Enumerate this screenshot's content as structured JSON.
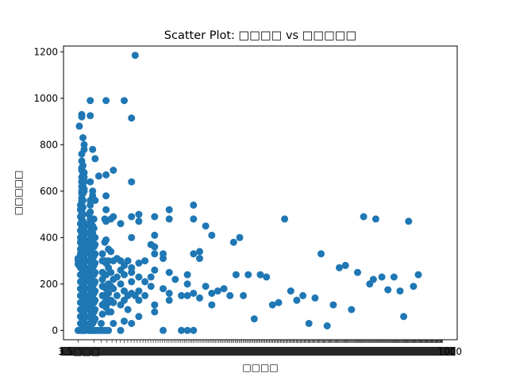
{
  "chart_data": {
    "type": "scatter",
    "title": "Scatter Plot: □□□□ vs □□□□□",
    "xlabel": "□□□□",
    "ylabel": "□□□□□",
    "ylim": [
      -40,
      1225
    ],
    "y_ticks": [
      0,
      200,
      400,
      600,
      800,
      1000,
      1200
    ],
    "x_axis_note": "categorical x axis; ~300 overlapping tick labels render as an illegible smear (leftmost reads \"3.5□□□\", rightmost reads \"1000\")",
    "x_tick_left_text": "3.5□□□",
    "x_tick_right_text": "1000",
    "grid": false,
    "color": "#1f77b4",
    "points_note": "approximate reading; x values are category index positions 0-300",
    "points": [
      [
        0,
        300
      ],
      [
        0,
        310
      ],
      [
        0,
        285
      ],
      [
        0,
        0
      ],
      [
        1,
        880
      ],
      [
        1,
        0
      ],
      [
        1,
        280
      ],
      [
        2,
        540
      ],
      [
        2,
        520
      ],
      [
        2,
        490
      ],
      [
        2,
        460
      ],
      [
        2,
        430
      ],
      [
        2,
        400
      ],
      [
        2,
        380
      ],
      [
        2,
        350
      ],
      [
        2,
        330
      ],
      [
        2,
        300
      ],
      [
        2,
        270
      ],
      [
        2,
        240
      ],
      [
        2,
        210
      ],
      [
        2,
        180
      ],
      [
        2,
        150
      ],
      [
        2,
        120
      ],
      [
        2,
        90
      ],
      [
        2,
        60
      ],
      [
        2,
        30
      ],
      [
        2,
        0
      ],
      [
        3,
        930
      ],
      [
        3,
        920
      ],
      [
        3,
        760
      ],
      [
        3,
        730
      ],
      [
        3,
        700
      ],
      [
        3,
        690
      ],
      [
        3,
        660
      ],
      [
        3,
        640
      ],
      [
        3,
        620
      ],
      [
        3,
        600
      ],
      [
        3,
        590
      ],
      [
        3,
        570
      ],
      [
        3,
        560
      ],
      [
        3,
        540
      ],
      [
        3,
        510
      ],
      [
        3,
        480
      ],
      [
        3,
        450
      ],
      [
        3,
        420
      ],
      [
        3,
        390
      ],
      [
        3,
        360
      ],
      [
        3,
        330
      ],
      [
        3,
        300
      ],
      [
        3,
        270
      ],
      [
        3,
        240
      ],
      [
        3,
        210
      ],
      [
        3,
        180
      ],
      [
        3,
        150
      ],
      [
        3,
        120
      ],
      [
        3,
        90
      ],
      [
        3,
        60
      ],
      [
        3,
        30
      ],
      [
        3,
        0
      ],
      [
        4,
        830
      ],
      [
        4,
        710
      ],
      [
        4,
        680
      ],
      [
        4,
        650
      ],
      [
        4,
        620
      ],
      [
        4,
        590
      ],
      [
        4,
        560
      ],
      [
        4,
        530
      ],
      [
        4,
        500
      ],
      [
        4,
        470
      ],
      [
        4,
        440
      ],
      [
        4,
        410
      ],
      [
        4,
        380
      ],
      [
        4,
        350
      ],
      [
        4,
        320
      ],
      [
        4,
        290
      ],
      [
        4,
        260
      ],
      [
        4,
        230
      ],
      [
        4,
        200
      ],
      [
        4,
        170
      ],
      [
        4,
        140
      ],
      [
        4,
        110
      ],
      [
        4,
        80
      ],
      [
        4,
        50
      ],
      [
        4,
        20
      ],
      [
        4,
        0
      ],
      [
        5,
        800
      ],
      [
        5,
        780
      ],
      [
        5,
        680
      ],
      [
        5,
        660
      ],
      [
        5,
        640
      ],
      [
        5,
        610
      ],
      [
        5,
        600
      ],
      [
        5,
        460
      ],
      [
        5,
        430
      ],
      [
        5,
        400
      ],
      [
        5,
        370
      ],
      [
        5,
        340
      ],
      [
        5,
        310
      ],
      [
        5,
        280
      ],
      [
        5,
        250
      ],
      [
        5,
        220
      ],
      [
        5,
        190
      ],
      [
        5,
        160
      ],
      [
        5,
        130
      ],
      [
        5,
        100
      ],
      [
        5,
        70
      ],
      [
        5,
        40
      ],
      [
        5,
        0
      ],
      [
        6,
        450
      ],
      [
        6,
        420
      ],
      [
        6,
        390
      ],
      [
        6,
        360
      ],
      [
        6,
        330
      ],
      [
        6,
        300
      ],
      [
        6,
        270
      ],
      [
        6,
        240
      ],
      [
        6,
        210
      ],
      [
        6,
        180
      ],
      [
        6,
        150
      ],
      [
        6,
        120
      ],
      [
        6,
        90
      ],
      [
        6,
        60
      ],
      [
        6,
        30
      ],
      [
        6,
        0
      ],
      [
        9,
        500
      ],
      [
        9,
        460
      ],
      [
        9,
        420
      ],
      [
        9,
        380
      ],
      [
        9,
        340
      ],
      [
        9,
        300
      ],
      [
        9,
        260
      ],
      [
        9,
        220
      ],
      [
        9,
        180
      ],
      [
        9,
        140
      ],
      [
        9,
        100
      ],
      [
        9,
        60
      ],
      [
        9,
        20
      ],
      [
        9,
        0
      ],
      [
        10,
        990
      ],
      [
        10,
        925
      ],
      [
        10,
        640
      ],
      [
        10,
        560
      ],
      [
        10,
        540
      ],
      [
        10,
        510
      ],
      [
        10,
        480
      ],
      [
        10,
        450
      ],
      [
        10,
        420
      ],
      [
        10,
        390
      ],
      [
        10,
        360
      ],
      [
        10,
        330
      ],
      [
        10,
        300
      ],
      [
        10,
        270
      ],
      [
        10,
        240
      ],
      [
        10,
        210
      ],
      [
        10,
        180
      ],
      [
        10,
        150
      ],
      [
        10,
        120
      ],
      [
        10,
        90
      ],
      [
        10,
        60
      ],
      [
        10,
        30
      ],
      [
        10,
        0
      ],
      [
        11,
        470
      ],
      [
        11,
        440
      ],
      [
        11,
        410
      ],
      [
        11,
        380
      ],
      [
        11,
        350
      ],
      [
        11,
        320
      ],
      [
        11,
        290
      ],
      [
        11,
        260
      ],
      [
        11,
        230
      ],
      [
        11,
        200
      ],
      [
        11,
        170
      ],
      [
        11,
        140
      ],
      [
        11,
        110
      ],
      [
        11,
        80
      ],
      [
        11,
        50
      ],
      [
        11,
        0
      ],
      [
        12,
        780
      ],
      [
        12,
        600
      ],
      [
        12,
        580
      ],
      [
        12,
        480
      ],
      [
        12,
        450
      ],
      [
        12,
        420
      ],
      [
        12,
        390
      ],
      [
        12,
        360
      ],
      [
        12,
        330
      ],
      [
        12,
        300
      ],
      [
        12,
        270
      ],
      [
        12,
        240
      ],
      [
        12,
        210
      ],
      [
        12,
        180
      ],
      [
        12,
        150
      ],
      [
        12,
        120
      ],
      [
        12,
        90
      ],
      [
        12,
        60
      ],
      [
        12,
        30
      ],
      [
        12,
        0
      ],
      [
        13,
        480
      ],
      [
        13,
        440
      ],
      [
        13,
        400
      ],
      [
        13,
        360
      ],
      [
        13,
        320
      ],
      [
        13,
        280
      ],
      [
        13,
        240
      ],
      [
        13,
        200
      ],
      [
        13,
        160
      ],
      [
        13,
        120
      ],
      [
        13,
        80
      ],
      [
        13,
        40
      ],
      [
        13,
        0
      ],
      [
        14,
        740
      ],
      [
        14,
        560
      ],
      [
        14,
        400
      ],
      [
        14,
        370
      ],
      [
        14,
        330
      ],
      [
        14,
        290
      ],
      [
        14,
        250
      ],
      [
        14,
        210
      ],
      [
        14,
        170
      ],
      [
        14,
        130
      ],
      [
        14,
        90
      ],
      [
        14,
        50
      ],
      [
        14,
        0
      ],
      [
        16,
        0
      ],
      [
        17,
        665
      ],
      [
        18,
        0
      ],
      [
        19,
        30
      ],
      [
        20,
        330
      ],
      [
        20,
        300
      ],
      [
        20,
        250
      ],
      [
        20,
        220
      ],
      [
        20,
        190
      ],
      [
        20,
        150
      ],
      [
        20,
        110
      ],
      [
        20,
        70
      ],
      [
        20,
        0
      ],
      [
        22,
        480
      ],
      [
        22,
        380
      ],
      [
        22,
        300
      ],
      [
        22,
        240
      ],
      [
        22,
        190
      ],
      [
        22,
        150
      ],
      [
        22,
        120
      ],
      [
        22,
        0
      ],
      [
        23,
        990
      ],
      [
        23,
        670
      ],
      [
        23,
        580
      ],
      [
        23,
        520
      ],
      [
        23,
        470
      ],
      [
        23,
        390
      ],
      [
        23,
        290
      ],
      [
        23,
        240
      ],
      [
        23,
        180
      ],
      [
        23,
        140
      ],
      [
        23,
        100
      ],
      [
        23,
        0
      ],
      [
        25,
        350
      ],
      [
        25,
        300
      ],
      [
        25,
        270
      ],
      [
        25,
        200
      ],
      [
        25,
        160
      ],
      [
        25,
        120
      ],
      [
        25,
        80
      ],
      [
        25,
        0
      ],
      [
        27,
        480
      ],
      [
        27,
        340
      ],
      [
        27,
        250
      ],
      [
        27,
        190
      ],
      [
        27,
        130
      ],
      [
        27,
        80
      ],
      [
        29,
        690
      ],
      [
        29,
        490
      ],
      [
        29,
        300
      ],
      [
        29,
        220
      ],
      [
        29,
        180
      ],
      [
        29,
        120
      ],
      [
        29,
        30
      ],
      [
        32,
        310
      ],
      [
        32,
        230
      ],
      [
        32,
        150
      ],
      [
        35,
        460
      ],
      [
        35,
        300
      ],
      [
        35,
        260
      ],
      [
        35,
        200
      ],
      [
        35,
        110
      ],
      [
        35,
        0
      ],
      [
        38,
        990
      ],
      [
        38,
        280
      ],
      [
        38,
        240
      ],
      [
        38,
        170
      ],
      [
        38,
        130
      ],
      [
        38,
        40
      ],
      [
        41,
        300
      ],
      [
        41,
        150
      ],
      [
        41,
        90
      ],
      [
        44,
        915
      ],
      [
        44,
        640
      ],
      [
        44,
        490
      ],
      [
        44,
        400
      ],
      [
        44,
        270
      ],
      [
        44,
        250
      ],
      [
        44,
        210
      ],
      [
        44,
        160
      ],
      [
        44,
        30
      ],
      [
        47,
        1185
      ],
      [
        47,
        150
      ],
      [
        50,
        500
      ],
      [
        50,
        470
      ],
      [
        50,
        290
      ],
      [
        50,
        230
      ],
      [
        50,
        170
      ],
      [
        50,
        130
      ],
      [
        50,
        60
      ],
      [
        55,
        300
      ],
      [
        55,
        210
      ],
      [
        55,
        150
      ],
      [
        60,
        370
      ],
      [
        60,
        230
      ],
      [
        60,
        190
      ],
      [
        63,
        490
      ],
      [
        63,
        410
      ],
      [
        63,
        360
      ],
      [
        63,
        330
      ],
      [
        63,
        260
      ],
      [
        63,
        110
      ],
      [
        63,
        80
      ],
      [
        70,
        330
      ],
      [
        70,
        310
      ],
      [
        70,
        180
      ],
      [
        70,
        0
      ],
      [
        75,
        520
      ],
      [
        75,
        480
      ],
      [
        75,
        250
      ],
      [
        75,
        160
      ],
      [
        75,
        130
      ],
      [
        80,
        220
      ],
      [
        85,
        150
      ],
      [
        85,
        0
      ],
      [
        90,
        240
      ],
      [
        90,
        200
      ],
      [
        90,
        150
      ],
      [
        90,
        0
      ],
      [
        95,
        540
      ],
      [
        95,
        480
      ],
      [
        95,
        330
      ],
      [
        95,
        160
      ],
      [
        95,
        0
      ],
      [
        100,
        340
      ],
      [
        100,
        310
      ],
      [
        100,
        140
      ],
      [
        105,
        450
      ],
      [
        105,
        190
      ],
      [
        110,
        410
      ],
      [
        110,
        160
      ],
      [
        110,
        110
      ],
      [
        115,
        170
      ],
      [
        120,
        180
      ],
      [
        125,
        150
      ],
      [
        128,
        380
      ],
      [
        130,
        240
      ],
      [
        133,
        400
      ],
      [
        136,
        150
      ],
      [
        140,
        240
      ],
      [
        145,
        50
      ],
      [
        150,
        240
      ],
      [
        155,
        230
      ],
      [
        160,
        110
      ],
      [
        165,
        120
      ],
      [
        170,
        480
      ],
      [
        175,
        170
      ],
      [
        180,
        130
      ],
      [
        185,
        150
      ],
      [
        190,
        30
      ],
      [
        195,
        140
      ],
      [
        200,
        330
      ],
      [
        205,
        20
      ],
      [
        210,
        110
      ],
      [
        215,
        270
      ],
      [
        220,
        280
      ],
      [
        225,
        90
      ],
      [
        230,
        250
      ],
      [
        235,
        490
      ],
      [
        240,
        200
      ],
      [
        243,
        220
      ],
      [
        245,
        480
      ],
      [
        250,
        230
      ],
      [
        255,
        175
      ],
      [
        260,
        230
      ],
      [
        265,
        170
      ],
      [
        268,
        60
      ],
      [
        272,
        470
      ],
      [
        276,
        190
      ],
      [
        280,
        240
      ]
    ]
  }
}
